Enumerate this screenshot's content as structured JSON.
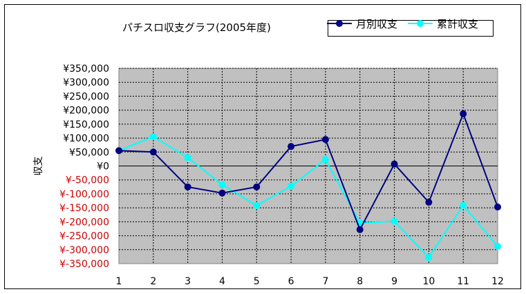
{
  "chart_data": {
    "type": "line",
    "title": "パチスロ収支グラフ(2005年度)",
    "ylabel": "収支",
    "xlabel": "",
    "categories": [
      "1",
      "2",
      "3",
      "4",
      "5",
      "6",
      "7",
      "8",
      "9",
      "10",
      "11",
      "12"
    ],
    "series": [
      {
        "name": "月別収支",
        "color": "#000080",
        "values": [
          55000,
          50000,
          -75000,
          -97000,
          -75000,
          70000,
          95000,
          -228000,
          7000,
          -130000,
          187000,
          -147000
        ]
      },
      {
        "name": "累計収支",
        "color": "#00ffff",
        "values": [
          55000,
          105000,
          30000,
          -67000,
          -142000,
          -72000,
          23000,
          -205000,
          -198000,
          -328000,
          -141000,
          -288000
        ]
      }
    ],
    "ylim": [
      -350000,
      350000
    ],
    "yticks": [
      {
        "value": 350000,
        "label": "¥350,000"
      },
      {
        "value": 300000,
        "label": "¥300,000"
      },
      {
        "value": 250000,
        "label": "¥250,000"
      },
      {
        "value": 200000,
        "label": "¥200,000"
      },
      {
        "value": 150000,
        "label": "¥150,000"
      },
      {
        "value": 100000,
        "label": "¥100,000"
      },
      {
        "value": 50000,
        "label": "¥50,000"
      },
      {
        "value": 0,
        "label": "¥0"
      },
      {
        "value": -50000,
        "label": "¥-50,000"
      },
      {
        "value": -100000,
        "label": "¥-100,000"
      },
      {
        "value": -150000,
        "label": "¥-150,000"
      },
      {
        "value": -200000,
        "label": "¥-200,000"
      },
      {
        "value": -250000,
        "label": "¥-250,000"
      },
      {
        "value": -300000,
        "label": "¥-300,000"
      },
      {
        "value": -350000,
        "label": "¥-350,000"
      }
    ],
    "grid": true,
    "plot_background": "#c0c0c0",
    "negative_label_color": "#cc0000",
    "legend_position": "top-right"
  }
}
